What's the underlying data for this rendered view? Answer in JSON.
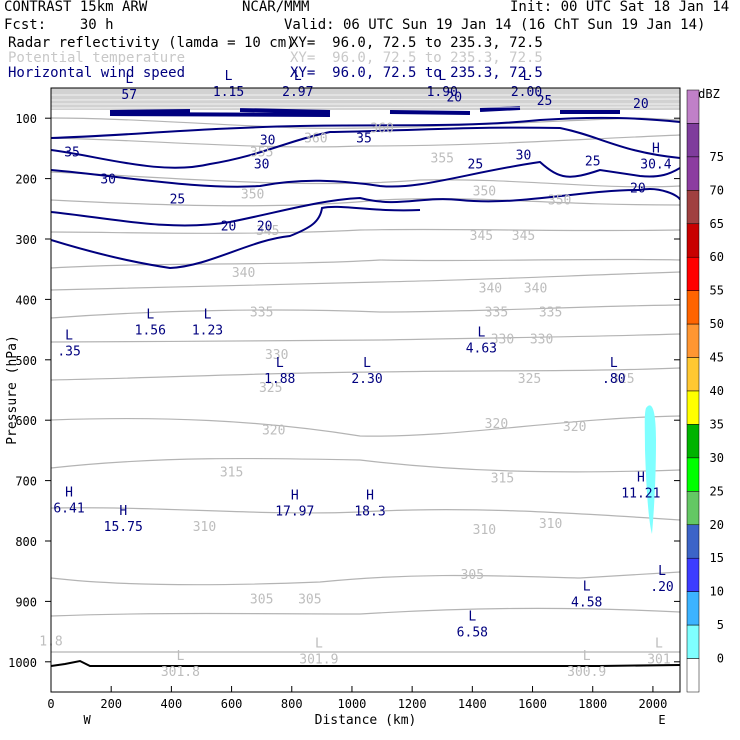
{
  "header": {
    "model": "CONTRAST 15km ARW",
    "org": "NCAR/MMM",
    "init": "Init: 00 UTC Sat 18 Jan 14",
    "fcst": "Fcst:    30 h",
    "valid": "Valid: 06 UTC Sun 19 Jan 14 (16 ChT Sun 19 Jan 14)"
  },
  "legend": [
    {
      "field": "Radar reflectivity (lamda = 10 cm)",
      "xy": "XY=  96.0, 72.5 to 235.3, 72.5",
      "color": "#000000"
    },
    {
      "field": "Potential temperature",
      "xy": "XY=  96.0, 72.5 to 235.3, 72.5",
      "color": "#c8c8c8"
    },
    {
      "field": "Horizontal wind speed",
      "xy": "XY=  96.0, 72.5 to 235.3, 72.5",
      "color": "#00007f"
    }
  ],
  "chart_data": {
    "type": "contour-cross-section",
    "xlabel": "Distance (km)",
    "ylabel": "Pressure (hPa)",
    "xlim": [
      0,
      2090
    ],
    "ylim": [
      1050,
      50
    ],
    "x_ticks": [
      0,
      200,
      400,
      600,
      800,
      1000,
      1200,
      1400,
      1600,
      1800,
      2000
    ],
    "y_ticks": [
      100,
      200,
      300,
      400,
      500,
      600,
      700,
      800,
      900,
      1000
    ],
    "endpoints": {
      "left": "W",
      "right": "E"
    },
    "colorbar": {
      "title": "dBZ",
      "levels": [
        0,
        5,
        10,
        15,
        20,
        25,
        30,
        35,
        40,
        45,
        50,
        55,
        60,
        65,
        70,
        75
      ],
      "colors": [
        "#ffffff",
        "#7fffff",
        "#3cb3ff",
        "#3c3cff",
        "#3c64c8",
        "#64c864",
        "#00ff00",
        "#00b300",
        "#ffff00",
        "#ffc832",
        "#ff9632",
        "#ff6400",
        "#ff0000",
        "#c80000",
        "#a04040",
        "#8c3ca0",
        "#7f3c9c",
        "#c080c8"
      ]
    },
    "theta_contour_labels": [
      {
        "x": 1100,
        "p": 115,
        "text": "360"
      },
      {
        "x": 880,
        "p": 132,
        "text": "360"
      },
      {
        "x": 700,
        "p": 155,
        "text": "355"
      },
      {
        "x": 1300,
        "p": 165,
        "text": "355"
      },
      {
        "x": 670,
        "p": 225,
        "text": "350"
      },
      {
        "x": 1440,
        "p": 220,
        "text": "350"
      },
      {
        "x": 1690,
        "p": 235,
        "text": "350"
      },
      {
        "x": 720,
        "p": 285,
        "text": "345"
      },
      {
        "x": 1430,
        "p": 293,
        "text": "345"
      },
      {
        "x": 1570,
        "p": 293,
        "text": "345"
      },
      {
        "x": 640,
        "p": 355,
        "text": "340"
      },
      {
        "x": 1460,
        "p": 380,
        "text": "340"
      },
      {
        "x": 1610,
        "p": 380,
        "text": "340"
      },
      {
        "x": 700,
        "p": 420,
        "text": "335"
      },
      {
        "x": 1480,
        "p": 420,
        "text": "335"
      },
      {
        "x": 1660,
        "p": 420,
        "text": "335"
      },
      {
        "x": 750,
        "p": 490,
        "text": "330"
      },
      {
        "x": 1500,
        "p": 465,
        "text": "330"
      },
      {
        "x": 1630,
        "p": 465,
        "text": "330"
      },
      {
        "x": 730,
        "p": 545,
        "text": "325"
      },
      {
        "x": 1590,
        "p": 530,
        "text": "325"
      },
      {
        "x": 1900,
        "p": 530,
        "text": "325"
      },
      {
        "x": 740,
        "p": 615,
        "text": "320"
      },
      {
        "x": 1480,
        "p": 605,
        "text": "320"
      },
      {
        "x": 1740,
        "p": 610,
        "text": "320"
      },
      {
        "x": 600,
        "p": 685,
        "text": "315"
      },
      {
        "x": 1500,
        "p": 695,
        "text": "315"
      },
      {
        "x": 510,
        "p": 775,
        "text": "310"
      },
      {
        "x": 1440,
        "p": 780,
        "text": "310"
      },
      {
        "x": 1660,
        "p": 770,
        "text": "310"
      },
      {
        "x": 1400,
        "p": 855,
        "text": "305"
      },
      {
        "x": 700,
        "p": 895,
        "text": "305"
      },
      {
        "x": 860,
        "p": 895,
        "text": "305"
      },
      {
        "x": 0,
        "p": 965,
        "text": "1.8"
      }
    ],
    "wind_contour_labels": [
      {
        "x": 70,
        "p": 155,
        "text": "35"
      },
      {
        "x": 1040,
        "p": 132,
        "text": "35"
      },
      {
        "x": 190,
        "p": 200,
        "text": "30"
      },
      {
        "x": 700,
        "p": 175,
        "text": "30"
      },
      {
        "x": 720,
        "p": 135,
        "text": "30"
      },
      {
        "x": 1570,
        "p": 160,
        "text": "30"
      },
      {
        "x": 420,
        "p": 233,
        "text": "25"
      },
      {
        "x": 1410,
        "p": 175,
        "text": "25"
      },
      {
        "x": 1800,
        "p": 170,
        "text": "25"
      },
      {
        "x": 1640,
        "p": 70,
        "text": "25"
      },
      {
        "x": 590,
        "p": 278,
        "text": "20"
      },
      {
        "x": 710,
        "p": 278,
        "text": "20"
      },
      {
        "x": 1340,
        "p": 64,
        "text": "20"
      },
      {
        "x": 1950,
        "p": 215,
        "text": "20"
      },
      {
        "x": 1960,
        "p": 75,
        "text": "20"
      }
    ],
    "extrema": [
      {
        "kind": "L",
        "x": 260,
        "p": 45,
        "value": "57"
      },
      {
        "kind": "L",
        "x": 590,
        "p": 40,
        "value": "1.15"
      },
      {
        "kind": "L",
        "x": 820,
        "p": 40,
        "value": "2.97"
      },
      {
        "kind": "L",
        "x": 1300,
        "p": 40,
        "value": "1.90"
      },
      {
        "kind": "L",
        "x": 1580,
        "p": 40,
        "value": "2.00"
      },
      {
        "kind": "H",
        "x": 2010,
        "p": 160,
        "value": "30.4"
      },
      {
        "kind": "L",
        "x": 330,
        "p": 435,
        "value": "1.56"
      },
      {
        "kind": "L",
        "x": 520,
        "p": 435,
        "value": "1.23"
      },
      {
        "kind": "L",
        "x": 60,
        "p": 470,
        "value": ".35"
      },
      {
        "kind": "L",
        "x": 1430,
        "p": 465,
        "value": "4.63"
      },
      {
        "kind": "L",
        "x": 760,
        "p": 515,
        "value": "1.88"
      },
      {
        "kind": "L",
        "x": 1050,
        "p": 515,
        "value": "2.30"
      },
      {
        "kind": "L",
        "x": 1870,
        "p": 515,
        "value": ".80"
      },
      {
        "kind": "H",
        "x": 1960,
        "p": 705,
        "value": "11.21"
      },
      {
        "kind": "H",
        "x": 20,
        "p": 730,
        "value": "6.41"
      },
      {
        "kind": "H",
        "x": 240,
        "p": 760,
        "value": "15.75"
      },
      {
        "kind": "H",
        "x": 810,
        "p": 735,
        "value": "17.97"
      },
      {
        "kind": "H",
        "x": 1060,
        "p": 735,
        "value": "18.3"
      },
      {
        "kind": "L",
        "x": 1780,
        "p": 885,
        "value": "4.58"
      },
      {
        "kind": "L",
        "x": 1400,
        "p": 935,
        "value": "6.58"
      },
      {
        "kind": "L",
        "x": 2040,
        "p": 860,
        "value": ".20"
      },
      {
        "kind": "L",
        "x": 430,
        "p": 1000,
        "value": "301.8"
      },
      {
        "kind": "L",
        "x": 890,
        "p": 980,
        "value": "301.9"
      },
      {
        "kind": "L",
        "x": 1780,
        "p": 1000,
        "value": "300.9"
      },
      {
        "kind": "L",
        "x": 2020,
        "p": 980,
        "value": "301"
      }
    ],
    "reflectivity_echo": {
      "x": 1990,
      "p_top": 575,
      "p_bottom": 785,
      "dbz": 5
    },
    "terrain_surface_p": 1005
  }
}
